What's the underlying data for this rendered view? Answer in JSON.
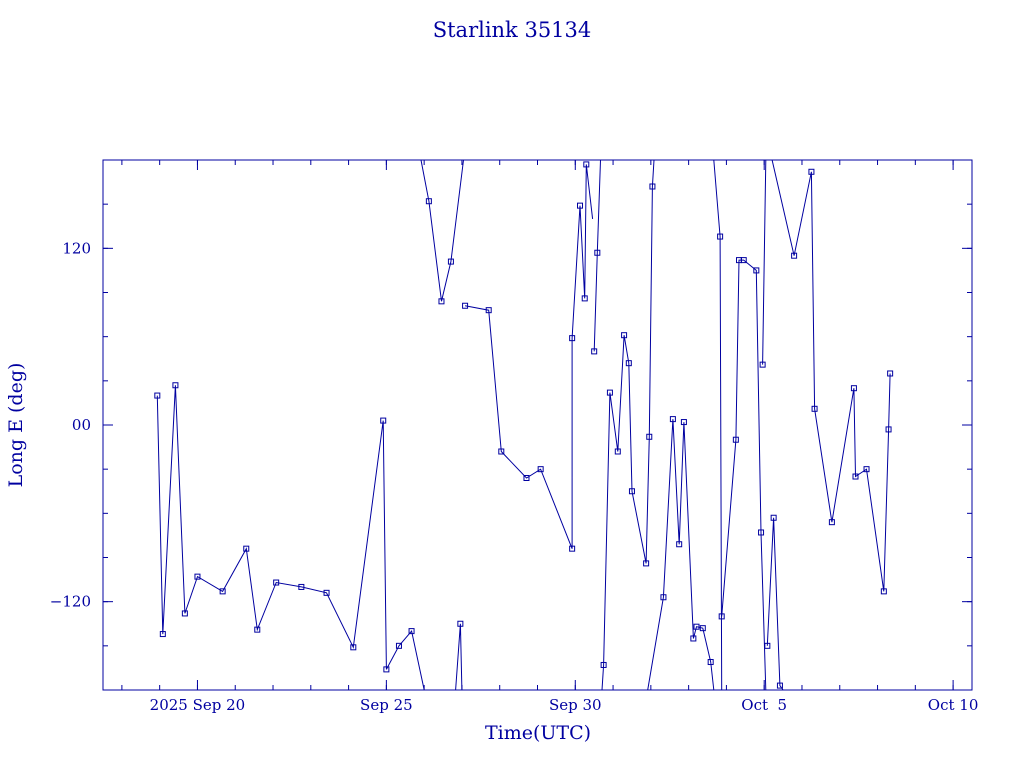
{
  "chart_data": {
    "type": "line",
    "title": "Starlink 35134",
    "xlabel": "Time(UTC)",
    "ylabel": "Long E (deg)",
    "xlim": [
      "2025-09-17T12:00",
      "2025-10-10T12:00"
    ],
    "ylim": [
      -180,
      180
    ],
    "x_ticks": [
      {
        "at": "2025-09-20T00:00",
        "label": "2025 Sep 20"
      },
      {
        "at": "2025-09-25T00:00",
        "label": "Sep 25"
      },
      {
        "at": "2025-09-30T00:00",
        "label": "Sep 30"
      },
      {
        "at": "2025-10-05T00:00",
        "label": "Oct  5"
      },
      {
        "at": "2025-10-10T00:00",
        "label": "Oct 10"
      }
    ],
    "y_ticks": [
      {
        "value": 120,
        "label": "120"
      },
      {
        "value": 0,
        "label": "00"
      },
      {
        "value": -120,
        "label": "−120"
      }
    ],
    "x_minor_step_days": 1,
    "y_minor_step": 30,
    "grid": false,
    "color": "#0000a0",
    "series": [
      {
        "marker": "square",
        "points": [
          {
            "x": "2025-09-18T22:30",
            "y": 20
          },
          {
            "x": "2025-09-19T02:00",
            "y": -142
          },
          {
            "x": "2025-09-19T10:00",
            "y": 27
          },
          {
            "x": "2025-09-19T16:00",
            "y": -128
          },
          {
            "x": "2025-09-20T00:00",
            "y": -103
          },
          {
            "x": "2025-09-20T16:00",
            "y": -113
          },
          {
            "x": "2025-09-21T07:00",
            "y": -84
          },
          {
            "x": "2025-09-21T14:00",
            "y": -139
          },
          {
            "x": "2025-09-22T02:00",
            "y": -107
          },
          {
            "x": "2025-09-22T18:00",
            "y": -110
          },
          {
            "x": "2025-09-23T10:00",
            "y": -114
          },
          {
            "x": "2025-09-24T03:00",
            "y": -151
          },
          {
            "x": "2025-09-24T22:00",
            "y": 3
          },
          {
            "x": "2025-09-25T00:00",
            "y": -166
          },
          {
            "x": "2025-09-25T08:00",
            "y": -150
          },
          {
            "x": "2025-09-25T16:00",
            "y": -140
          },
          {
            "x": "2025-09-26T00:00",
            "y": -180,
            "gap": true
          },
          {
            "x": "2025-09-25T22:00",
            "y": 180
          },
          {
            "x": "2025-09-26T03:00",
            "y": 152
          },
          {
            "x": "2025-09-26T11:00",
            "y": 84
          },
          {
            "x": "2025-09-26T17:00",
            "y": 111
          },
          {
            "x": "2025-09-27T01:00",
            "y": 180,
            "gap": true
          },
          {
            "x": "2025-09-26T20:00",
            "y": -180
          },
          {
            "x": "2025-09-26T23:00",
            "y": -135
          },
          {
            "x": "2025-09-27T00:00",
            "y": -180,
            "gap": true
          },
          {
            "x": "2025-09-27T02:00",
            "y": 81
          },
          {
            "x": "2025-09-27T17:00",
            "y": 78
          },
          {
            "x": "2025-09-28T01:00",
            "y": -18
          },
          {
            "x": "2025-09-28T17:00",
            "y": -36
          },
          {
            "x": "2025-09-29T02:00",
            "y": -30
          },
          {
            "x": "2025-09-29T22:00",
            "y": -84
          },
          {
            "x": "2025-09-29T22:00",
            "y": 59
          },
          {
            "x": "2025-09-30T03:00",
            "y": 149
          },
          {
            "x": "2025-09-30T06:00",
            "y": 86
          },
          {
            "x": "2025-09-30T07:00",
            "y": 177
          },
          {
            "x": "2025-09-30T11:00",
            "y": 140,
            "gap": true
          },
          {
            "x": "2025-09-30T12:00",
            "y": 50
          },
          {
            "x": "2025-09-30T14:00",
            "y": 117
          },
          {
            "x": "2025-09-30T16:00",
            "y": 180,
            "gap": true
          },
          {
            "x": "2025-09-30T17:00",
            "y": -180
          },
          {
            "x": "2025-09-30T18:00",
            "y": -163
          },
          {
            "x": "2025-09-30T22:00",
            "y": 22
          },
          {
            "x": "2025-10-01T03:00",
            "y": -18
          },
          {
            "x": "2025-10-01T07:00",
            "y": 61
          },
          {
            "x": "2025-10-01T10:00",
            "y": 42
          },
          {
            "x": "2025-10-01T12:00",
            "y": -45
          },
          {
            "x": "2025-10-01T21:00",
            "y": -94
          },
          {
            "x": "2025-10-01T23:00",
            "y": -8
          },
          {
            "x": "2025-10-02T01:00",
            "y": 162
          },
          {
            "x": "2025-10-02T02:00",
            "y": 180,
            "gap": true
          },
          {
            "x": "2025-10-01T22:00",
            "y": -180
          },
          {
            "x": "2025-10-02T08:00",
            "y": -117
          },
          {
            "x": "2025-10-02T14:00",
            "y": 4
          },
          {
            "x": "2025-10-02T18:00",
            "y": -81
          },
          {
            "x": "2025-10-02T21:00",
            "y": 2
          },
          {
            "x": "2025-10-03T03:00",
            "y": -145
          },
          {
            "x": "2025-10-03T05:00",
            "y": -137
          },
          {
            "x": "2025-10-03T09:00",
            "y": -138
          },
          {
            "x": "2025-10-03T14:00",
            "y": -161
          },
          {
            "x": "2025-10-03T16:00",
            "y": -180,
            "gap": true
          },
          {
            "x": "2025-10-03T16:00",
            "y": 180
          },
          {
            "x": "2025-10-03T20:00",
            "y": 128
          },
          {
            "x": "2025-10-03T21:00",
            "y": -180,
            "gap": true
          },
          {
            "x": "2025-10-03T21:00",
            "y": -130
          },
          {
            "x": "2025-10-04T06:00",
            "y": -10
          },
          {
            "x": "2025-10-04T08:00",
            "y": 112
          },
          {
            "x": "2025-10-04T11:00",
            "y": 112
          },
          {
            "x": "2025-10-04T19:00",
            "y": 105
          },
          {
            "x": "2025-10-04T22:00",
            "y": -73
          },
          {
            "x": "2025-10-05T01:00",
            "y": -180,
            "gap": true
          },
          {
            "x": "2025-10-04T23:00",
            "y": 41
          },
          {
            "x": "2025-10-05T01:00",
            "y": 180,
            "gap": true
          },
          {
            "x": "2025-10-05T02:00",
            "y": -150
          },
          {
            "x": "2025-10-05T06:00",
            "y": -63
          },
          {
            "x": "2025-10-05T10:00",
            "y": -177
          },
          {
            "x": "2025-10-05T12:00",
            "y": -180,
            "gap": true
          },
          {
            "x": "2025-10-05T05:00",
            "y": 180
          },
          {
            "x": "2025-10-05T19:00",
            "y": 115
          },
          {
            "x": "2025-10-06T06:00",
            "y": 172
          },
          {
            "x": "2025-10-06T08:00",
            "y": 11
          },
          {
            "x": "2025-10-06T19:00",
            "y": -66
          },
          {
            "x": "2025-10-07T09:00",
            "y": 25
          },
          {
            "x": "2025-10-07T10:00",
            "y": -35
          },
          {
            "x": "2025-10-07T17:00",
            "y": -30
          },
          {
            "x": "2025-10-08T04:00",
            "y": -113
          },
          {
            "x": "2025-10-08T07:00",
            "y": -3
          },
          {
            "x": "2025-10-08T08:00",
            "y": 35
          }
        ]
      }
    ]
  }
}
